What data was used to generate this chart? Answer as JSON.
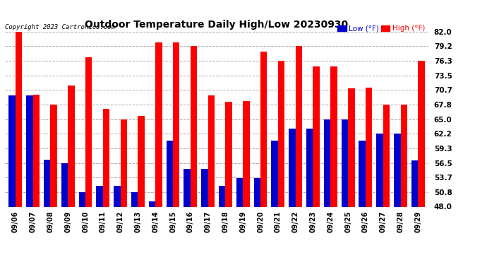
{
  "title": "Outdoor Temperature Daily High/Low 20230930",
  "copyright": "Copyright 2023 Cartronics.com",
  "categories": [
    "09/06",
    "09/07",
    "09/08",
    "09/09",
    "09/10",
    "09/11",
    "09/12",
    "09/13",
    "09/14",
    "09/15",
    "09/16",
    "09/17",
    "09/18",
    "09/19",
    "09/20",
    "09/21",
    "09/22",
    "09/23",
    "09/24",
    "09/25",
    "09/26",
    "09/27",
    "09/28",
    "09/29"
  ],
  "high_values": [
    82.0,
    69.8,
    67.8,
    71.6,
    77.0,
    67.0,
    65.0,
    65.6,
    80.0,
    80.0,
    79.2,
    69.6,
    68.4,
    68.6,
    78.2,
    76.3,
    79.2,
    75.2,
    75.2,
    71.0,
    71.2,
    67.8,
    67.8,
    76.3
  ],
  "low_values": [
    69.6,
    69.6,
    57.2,
    56.5,
    50.8,
    52.0,
    52.0,
    50.8,
    49.0,
    60.8,
    55.4,
    55.4,
    52.0,
    53.6,
    53.6,
    60.8,
    63.2,
    63.2,
    65.0,
    65.0,
    60.8,
    62.2,
    62.2,
    57.0
  ],
  "high_color": "#ff0000",
  "low_color": "#0000cc",
  "background_color": "#ffffff",
  "grid_color": "#aaaaaa",
  "ylim_min": 48.0,
  "ylim_max": 82.0,
  "yticks": [
    48.0,
    50.8,
    53.7,
    56.5,
    59.3,
    62.2,
    65.0,
    67.8,
    70.7,
    73.5,
    76.3,
    79.2,
    82.0
  ],
  "legend_low_label": "Low (°F)",
  "legend_high_label": "High (°F)"
}
